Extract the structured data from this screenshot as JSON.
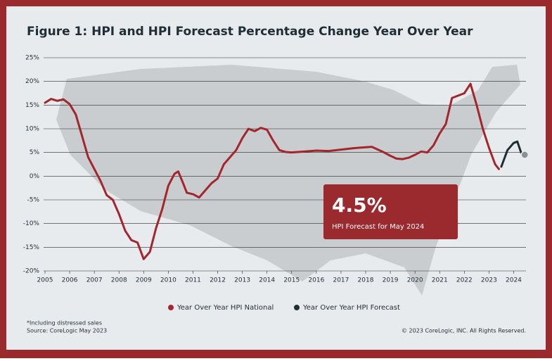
{
  "chart_data": {
    "type": "line",
    "title": "Figure 1: HPI and HPI Forecast Percentage Change Year Over Year",
    "xlim": [
      2005,
      2024.5
    ],
    "xticks": [
      2005,
      2006,
      2007,
      2008,
      2009,
      2010,
      2011,
      2012,
      2013,
      2014,
      2015,
      2016,
      2017,
      2018,
      2019,
      2020,
      2021,
      2022,
      2023,
      2024
    ],
    "ylim": [
      -20,
      25
    ],
    "yticks": [
      {
        "value": -20,
        "label": "-20%"
      },
      {
        "value": -15,
        "label": "-15%"
      },
      {
        "value": -10,
        "label": "-10%"
      },
      {
        "value": -5,
        "label": "-5%"
      },
      {
        "value": 0,
        "label": "0%"
      },
      {
        "value": 5,
        "label": "5%"
      },
      {
        "value": 10,
        "label": "10%"
      },
      {
        "value": 15,
        "label": "15%"
      },
      {
        "value": 20,
        "label": "20%"
      },
      {
        "value": 25,
        "label": "25%"
      }
    ],
    "grid": true,
    "series": [
      {
        "name": "Year Over Year HPI National",
        "color": "#a3262c",
        "x": [
          2005,
          2005.25,
          2005.5,
          2005.75,
          2006,
          2006.25,
          2006.5,
          2006.75,
          2007,
          2007.25,
          2007.5,
          2007.75,
          2008,
          2008.25,
          2008.5,
          2008.75,
          2009,
          2009.25,
          2009.5,
          2009.75,
          2010,
          2010.25,
          2010.4,
          2010.6,
          2010.75,
          2011,
          2011.25,
          2011.5,
          2011.75,
          2012,
          2012.25,
          2012.5,
          2012.75,
          2013,
          2013.25,
          2013.5,
          2013.75,
          2014,
          2014.25,
          2014.5,
          2014.75,
          2015,
          2015.5,
          2016,
          2016.5,
          2017,
          2017.5,
          2018,
          2018.25,
          2018.5,
          2018.75,
          2019,
          2019.25,
          2019.5,
          2019.75,
          2020,
          2020.25,
          2020.5,
          2020.75,
          2021,
          2021.25,
          2021.5,
          2021.75,
          2022,
          2022.25,
          2022.5,
          2022.75,
          2023,
          2023.25,
          2023.4
        ],
        "values": [
          15.5,
          16.3,
          15.9,
          16.2,
          15.2,
          13,
          8.5,
          4,
          1.5,
          -1,
          -4,
          -5,
          -8,
          -11.5,
          -13.5,
          -14,
          -17.5,
          -16,
          -11,
          -7,
          -2,
          0.5,
          1,
          -1.5,
          -3.5,
          -3.8,
          -4.5,
          -3,
          -1.5,
          -0.5,
          2.5,
          4,
          5.5,
          8,
          10,
          9.5,
          10.2,
          9.8,
          7.5,
          5.5,
          5.1,
          5,
          5.2,
          5.4,
          5.3,
          5.6,
          5.9,
          6.1,
          6.2,
          5.6,
          5,
          4.3,
          3.7,
          3.6,
          3.9,
          4.5,
          5.2,
          5,
          6.5,
          9,
          11,
          16.5,
          17,
          17.5,
          19.5,
          15,
          10,
          6,
          2.5,
          1.5
        ]
      },
      {
        "name": "Year Over Year HPI Forecast",
        "color": "#1f2d36",
        "x": [
          2023.5,
          2023.75,
          2024,
          2024.15,
          2024.3,
          2024.45
        ],
        "values": [
          2,
          5.5,
          7,
          7.3,
          5,
          4.5
        ]
      }
    ],
    "callout": {
      "value_label": "4.5%",
      "text": "HPI Forecast for May 2024"
    },
    "notes": [
      "*Including distressed sales",
      "Source: CoreLogic May 2023"
    ],
    "copyright": "© 2023 CoreLogic, INC. All Rights Reserved."
  }
}
